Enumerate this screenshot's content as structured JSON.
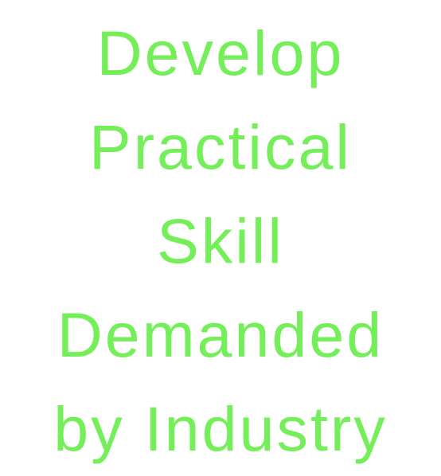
{
  "headline": {
    "lines": [
      "Develop",
      "Practical",
      "Skill",
      "Demanded",
      "by Industry"
    ]
  },
  "colors": {
    "text": "#74ef5a",
    "background": "#ffffff"
  }
}
